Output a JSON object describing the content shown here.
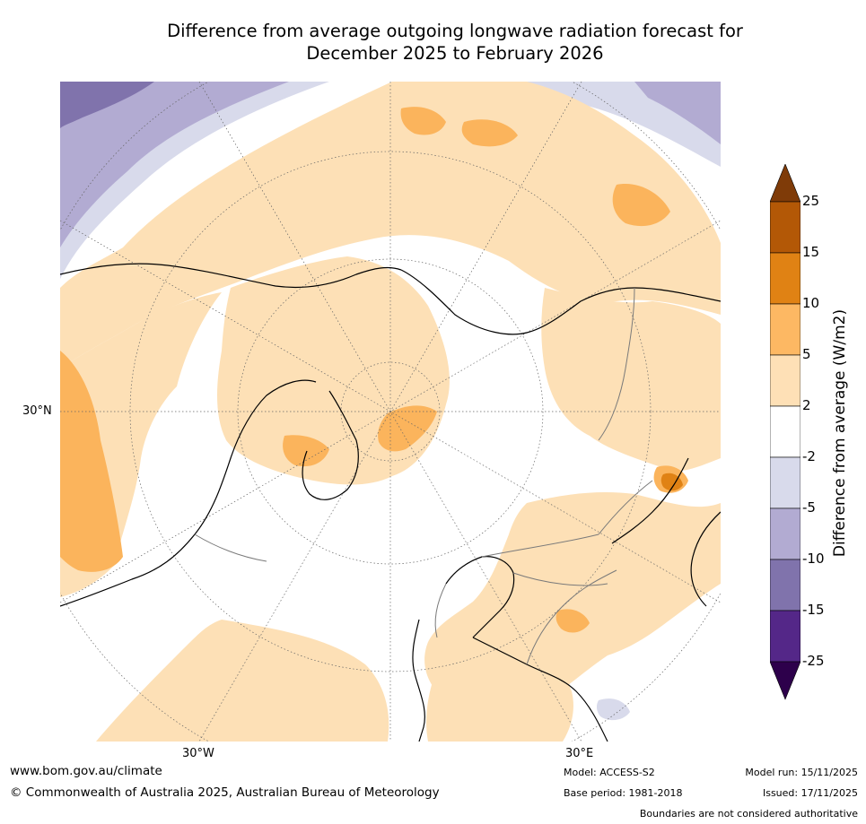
{
  "title": {
    "line1": "Difference from average outgoing longwave radiation forecast for",
    "line2": "December 2025 to February 2026"
  },
  "map": {
    "projection": "North polar stereographic",
    "lat_label": "30°N",
    "lon_labels": {
      "west": "30°W",
      "east": "30°E"
    },
    "region_colors": {
      "white": "#ffffff",
      "pos_2_5": "#fde0b6",
      "pos_5_10": "#fbb45c",
      "pos_10_15": "#e08214",
      "pos_15_25": "#b35806",
      "neg_2_5": "#d8daeb",
      "neg_5_10": "#b2abd2",
      "neg_10_15": "#8073ac",
      "land_mask": "#888888"
    }
  },
  "colorbar": {
    "title": "Difference from average (W/m2)",
    "ticks": [
      "25",
      "15",
      "10",
      "5",
      "2",
      "-2",
      "-5",
      "-10",
      "-15",
      "-25"
    ],
    "colors": [
      "#7f3b08",
      "#b35806",
      "#e08214",
      "#fdb863",
      "#fee0b6",
      "#ffffff",
      "#d8daeb",
      "#b2abd2",
      "#8073ac",
      "#542788",
      "#2d004b"
    ]
  },
  "footer": {
    "url": "www.bom.gov.au/climate",
    "copyright": "© Commonwealth of Australia 2025, Australian Bureau of Meteorology",
    "model": "Model: ACCESS-S2",
    "base_period": "Base period: 1981-2018",
    "model_run": "Model run: 15/11/2025",
    "issued": "Issued: 17/11/2025",
    "disclaimer": "Boundaries are not considered authoritative"
  }
}
